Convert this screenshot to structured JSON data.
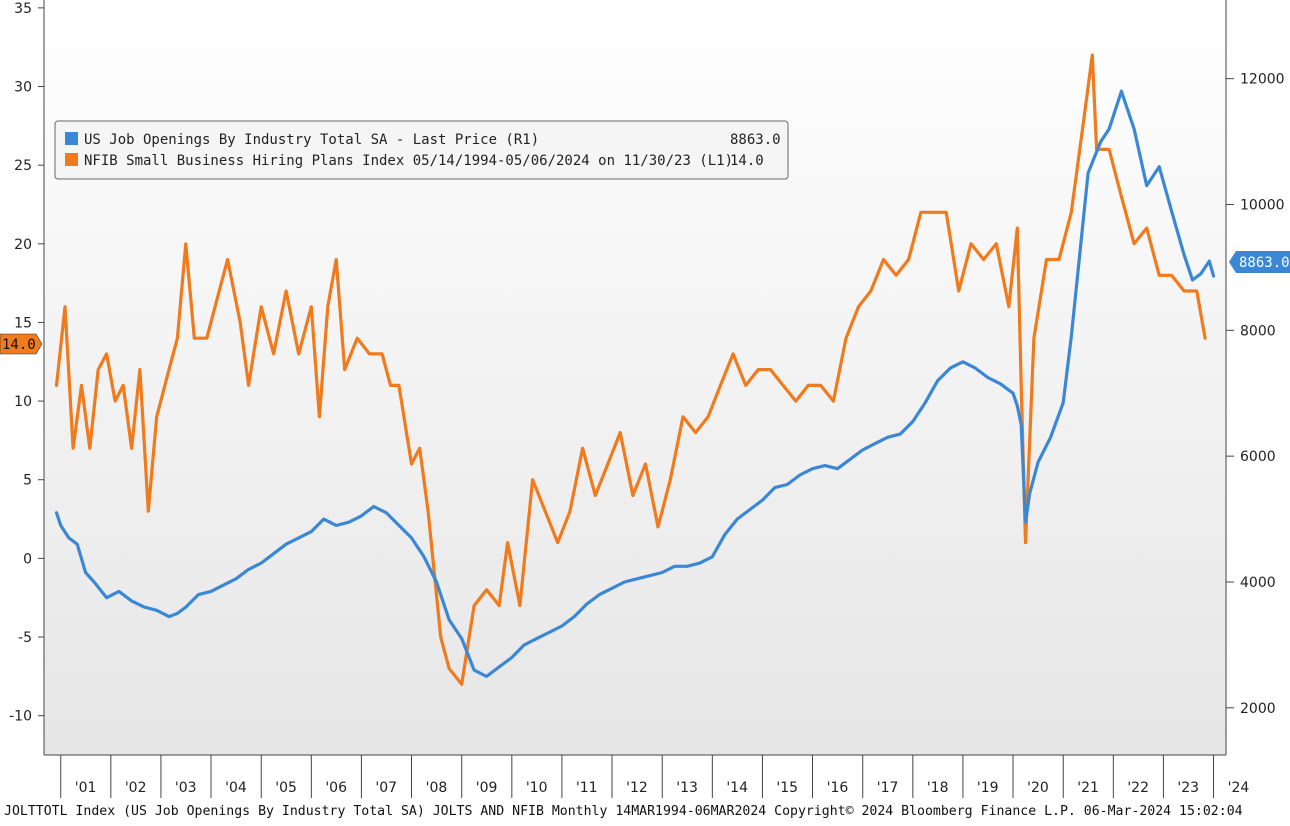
{
  "chart_data": {
    "type": "line",
    "x_axis": {
      "type": "date",
      "range": [
        "2000-09-01",
        "2024-04-01"
      ],
      "tick_labels": [
        "'01",
        "'02",
        "'03",
        "'04",
        "'05",
        "'06",
        "'07",
        "'08",
        "'09",
        "'10",
        "'11",
        "'12",
        "'13",
        "'14",
        "'15",
        "'16",
        "'17",
        "'18",
        "'19",
        "'20",
        "'21",
        "'22",
        "'23",
        "'24"
      ]
    },
    "left_axis": {
      "range": [
        -12.5,
        35.5
      ],
      "ticks": [
        35,
        30,
        25,
        20,
        15,
        10,
        5,
        0,
        -5,
        -10
      ],
      "tick_labels": [
        "35",
        "30",
        "25",
        "20",
        "15",
        "10",
        "5",
        "0",
        "-5",
        "-10"
      ]
    },
    "right_axis": {
      "range": [
        1250,
        13250
      ],
      "ticks": [
        12000,
        10000,
        8000,
        6000,
        4000,
        2000
      ],
      "tick_labels": [
        "12000",
        "10000",
        "8000",
        "6000",
        "4000",
        "2000"
      ]
    },
    "legend": {
      "position": "top-left",
      "entries": [
        {
          "label": "US Job Openings By Industry Total SA - Last Price (R1)",
          "value": "8863.0",
          "color": "#3a87d6"
        },
        {
          "label": "NFIB Small Business Hiring Plans Index 05/14/1994-05/06/2024 on 11/30/23 (L1)",
          "value": "14.0",
          "color": "#f07a1c"
        }
      ]
    },
    "series": [
      {
        "name": "US Job Openings By Industry Total SA - Last Price (R1)",
        "axis": "right",
        "color": "#3a87d6",
        "last_value_label": "8863.0",
        "points": [
          [
            "2000-12-01",
            5100
          ],
          [
            "2001-01-01",
            4900
          ],
          [
            "2001-03-01",
            4700
          ],
          [
            "2001-05-01",
            4600
          ],
          [
            "2001-07-01",
            4150
          ],
          [
            "2001-09-01",
            4000
          ],
          [
            "2001-12-01",
            3750
          ],
          [
            "2002-03-01",
            3850
          ],
          [
            "2002-06-01",
            3700
          ],
          [
            "2002-09-01",
            3600
          ],
          [
            "2002-12-01",
            3550
          ],
          [
            "2003-03-01",
            3450
          ],
          [
            "2003-05-01",
            3500
          ],
          [
            "2003-07-01",
            3600
          ],
          [
            "2003-10-01",
            3800
          ],
          [
            "2004-01-01",
            3850
          ],
          [
            "2004-04-01",
            3950
          ],
          [
            "2004-07-01",
            4050
          ],
          [
            "2004-10-01",
            4200
          ],
          [
            "2005-01-01",
            4300
          ],
          [
            "2005-04-01",
            4450
          ],
          [
            "2005-07-01",
            4600
          ],
          [
            "2005-10-01",
            4700
          ],
          [
            "2006-01-01",
            4800
          ],
          [
            "2006-04-01",
            5000
          ],
          [
            "2006-07-01",
            4900
          ],
          [
            "2006-10-01",
            4950
          ],
          [
            "2007-01-01",
            5050
          ],
          [
            "2007-04-01",
            5200
          ],
          [
            "2007-07-01",
            5100
          ],
          [
            "2007-10-01",
            4900
          ],
          [
            "2008-01-01",
            4700
          ],
          [
            "2008-04-01",
            4400
          ],
          [
            "2008-07-01",
            4000
          ],
          [
            "2008-10-01",
            3400
          ],
          [
            "2009-01-01",
            3100
          ],
          [
            "2009-04-01",
            2600
          ],
          [
            "2009-07-01",
            2500
          ],
          [
            "2009-10-01",
            2650
          ],
          [
            "2010-01-01",
            2800
          ],
          [
            "2010-04-01",
            3000
          ],
          [
            "2010-07-01",
            3100
          ],
          [
            "2010-10-01",
            3200
          ],
          [
            "2011-01-01",
            3300
          ],
          [
            "2011-04-01",
            3450
          ],
          [
            "2011-07-01",
            3650
          ],
          [
            "2011-10-01",
            3800
          ],
          [
            "2012-01-01",
            3900
          ],
          [
            "2012-04-01",
            4000
          ],
          [
            "2012-07-01",
            4050
          ],
          [
            "2012-10-01",
            4100
          ],
          [
            "2013-01-01",
            4150
          ],
          [
            "2013-04-01",
            4250
          ],
          [
            "2013-07-01",
            4250
          ],
          [
            "2013-10-01",
            4300
          ],
          [
            "2014-01-01",
            4400
          ],
          [
            "2014-04-01",
            4750
          ],
          [
            "2014-07-01",
            5000
          ],
          [
            "2014-10-01",
            5150
          ],
          [
            "2015-01-01",
            5300
          ],
          [
            "2015-04-01",
            5500
          ],
          [
            "2015-07-01",
            5550
          ],
          [
            "2015-10-01",
            5700
          ],
          [
            "2016-01-01",
            5800
          ],
          [
            "2016-04-01",
            5850
          ],
          [
            "2016-07-01",
            5800
          ],
          [
            "2016-10-01",
            5950
          ],
          [
            "2017-01-01",
            6100
          ],
          [
            "2017-04-01",
            6200
          ],
          [
            "2017-07-01",
            6300
          ],
          [
            "2017-10-01",
            6350
          ],
          [
            "2018-01-01",
            6550
          ],
          [
            "2018-04-01",
            6850
          ],
          [
            "2018-07-01",
            7200
          ],
          [
            "2018-10-01",
            7400
          ],
          [
            "2019-01-01",
            7500
          ],
          [
            "2019-04-01",
            7400
          ],
          [
            "2019-07-01",
            7250
          ],
          [
            "2019-10-01",
            7150
          ],
          [
            "2020-01-01",
            7000
          ],
          [
            "2020-02-01",
            6800
          ],
          [
            "2020-03-01",
            6500
          ],
          [
            "2020-04-01",
            4950
          ],
          [
            "2020-05-01",
            5400
          ],
          [
            "2020-07-01",
            5900
          ],
          [
            "2020-10-01",
            6300
          ],
          [
            "2021-01-01",
            6850
          ],
          [
            "2021-03-01",
            7900
          ],
          [
            "2021-05-01",
            9200
          ],
          [
            "2021-07-01",
            10500
          ],
          [
            "2021-10-01",
            11000
          ],
          [
            "2021-12-01",
            11200
          ],
          [
            "2022-03-01",
            11800
          ],
          [
            "2022-06-01",
            11200
          ],
          [
            "2022-09-01",
            10300
          ],
          [
            "2022-12-01",
            10600
          ],
          [
            "2023-03-01",
            9900
          ],
          [
            "2023-06-01",
            9200
          ],
          [
            "2023-08-01",
            8800
          ],
          [
            "2023-10-01",
            8900
          ],
          [
            "2023-12-01",
            9100
          ],
          [
            "2024-01-01",
            8863
          ]
        ]
      },
      {
        "name": "NFIB Small Business Hiring Plans Index 05/14/1994-05/06/2024 on 11/30/23 (L1)",
        "axis": "left",
        "color": "#f07a1c",
        "last_value_label": "14.0",
        "points": [
          [
            "2000-12-01",
            11
          ],
          [
            "2001-02-01",
            16
          ],
          [
            "2001-04-01",
            7
          ],
          [
            "2001-06-01",
            11
          ],
          [
            "2001-08-01",
            7
          ],
          [
            "2001-10-01",
            12
          ],
          [
            "2001-12-01",
            13
          ],
          [
            "2002-02-01",
            10
          ],
          [
            "2002-04-01",
            11
          ],
          [
            "2002-06-01",
            7
          ],
          [
            "2002-08-01",
            12
          ],
          [
            "2002-10-01",
            3
          ],
          [
            "2002-12-01",
            9
          ],
          [
            "2003-03-01",
            12
          ],
          [
            "2003-05-01",
            14
          ],
          [
            "2003-07-01",
            20
          ],
          [
            "2003-09-01",
            14
          ],
          [
            "2003-12-01",
            14
          ],
          [
            "2004-03-01",
            17
          ],
          [
            "2004-05-01",
            19
          ],
          [
            "2004-08-01",
            15
          ],
          [
            "2004-10-01",
            11
          ],
          [
            "2005-01-01",
            16
          ],
          [
            "2005-04-01",
            13
          ],
          [
            "2005-07-01",
            17
          ],
          [
            "2005-10-01",
            13
          ],
          [
            "2006-01-01",
            16
          ],
          [
            "2006-03-01",
            9
          ],
          [
            "2006-05-01",
            16
          ],
          [
            "2006-07-01",
            19
          ],
          [
            "2006-09-01",
            12
          ],
          [
            "2006-12-01",
            14
          ],
          [
            "2007-03-01",
            13
          ],
          [
            "2007-06-01",
            13
          ],
          [
            "2007-08-01",
            11
          ],
          [
            "2007-10-01",
            11
          ],
          [
            "2008-01-01",
            6
          ],
          [
            "2008-03-01",
            7
          ],
          [
            "2008-05-01",
            3
          ],
          [
            "2008-08-01",
            -5
          ],
          [
            "2008-10-01",
            -7
          ],
          [
            "2009-01-01",
            -8
          ],
          [
            "2009-04-01",
            -3
          ],
          [
            "2009-07-01",
            -2
          ],
          [
            "2009-10-01",
            -3
          ],
          [
            "2009-12-01",
            1
          ],
          [
            "2010-03-01",
            -3
          ],
          [
            "2010-06-01",
            5
          ],
          [
            "2010-09-01",
            3
          ],
          [
            "2010-12-01",
            1
          ],
          [
            "2011-03-01",
            3
          ],
          [
            "2011-06-01",
            7
          ],
          [
            "2011-09-01",
            4
          ],
          [
            "2011-12-01",
            6
          ],
          [
            "2012-03-01",
            8
          ],
          [
            "2012-06-01",
            4
          ],
          [
            "2012-09-01",
            6
          ],
          [
            "2012-12-01",
            2
          ],
          [
            "2013-03-01",
            5
          ],
          [
            "2013-06-01",
            9
          ],
          [
            "2013-09-01",
            8
          ],
          [
            "2013-12-01",
            9
          ],
          [
            "2014-03-01",
            11
          ],
          [
            "2014-06-01",
            13
          ],
          [
            "2014-09-01",
            11
          ],
          [
            "2014-12-01",
            12
          ],
          [
            "2015-03-01",
            12
          ],
          [
            "2015-06-01",
            11
          ],
          [
            "2015-09-01",
            10
          ],
          [
            "2015-12-01",
            11
          ],
          [
            "2016-03-01",
            11
          ],
          [
            "2016-06-01",
            10
          ],
          [
            "2016-09-01",
            14
          ],
          [
            "2016-12-01",
            16
          ],
          [
            "2017-03-01",
            17
          ],
          [
            "2017-06-01",
            19
          ],
          [
            "2017-09-01",
            18
          ],
          [
            "2017-12-01",
            19
          ],
          [
            "2018-03-01",
            22
          ],
          [
            "2018-06-01",
            22
          ],
          [
            "2018-09-01",
            22
          ],
          [
            "2018-12-01",
            17
          ],
          [
            "2019-03-01",
            20
          ],
          [
            "2019-06-01",
            19
          ],
          [
            "2019-09-01",
            20
          ],
          [
            "2019-12-01",
            16
          ],
          [
            "2020-02-01",
            21
          ],
          [
            "2020-03-01",
            11
          ],
          [
            "2020-04-01",
            1
          ],
          [
            "2020-06-01",
            14
          ],
          [
            "2020-09-01",
            19
          ],
          [
            "2020-12-01",
            19
          ],
          [
            "2021-03-01",
            22
          ],
          [
            "2021-06-01",
            28
          ],
          [
            "2021-08-01",
            32
          ],
          [
            "2021-09-01",
            26
          ],
          [
            "2021-12-01",
            26
          ],
          [
            "2022-03-01",
            23
          ],
          [
            "2022-06-01",
            20
          ],
          [
            "2022-09-01",
            21
          ],
          [
            "2022-12-01",
            18
          ],
          [
            "2023-03-01",
            18
          ],
          [
            "2023-06-01",
            17
          ],
          [
            "2023-09-01",
            17
          ],
          [
            "2023-11-01",
            14
          ]
        ]
      }
    ]
  },
  "footer": {
    "text": "JOLTTOTL Index (US Job Openings By Industry Total SA) JOLTS AND NFIB  Monthly 14MAR1994-06MAR2024  Copyright© 2024 Bloomberg Finance L.P.  06-Mar-2024 15:02:04"
  },
  "colors": {
    "blue": "#3a87d6",
    "orange": "#f07a1c",
    "plot_gradient_top": "#ffffff",
    "plot_gradient_bottom": "#e8e8e8"
  }
}
